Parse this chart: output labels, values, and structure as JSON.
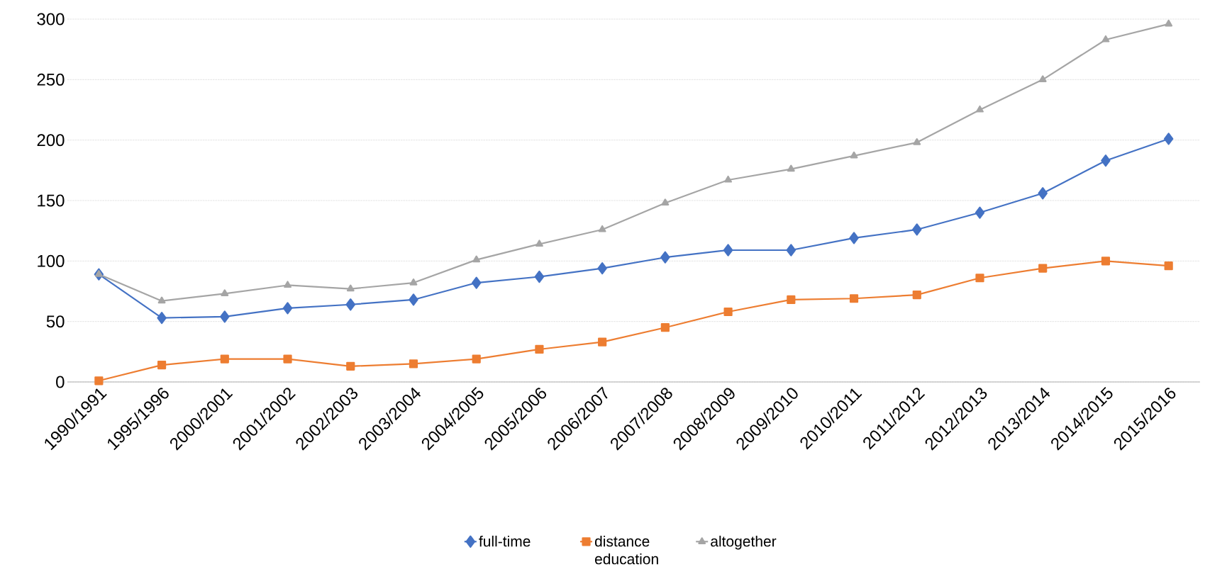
{
  "chart_data": {
    "type": "line",
    "categories": [
      "1990/1991",
      "1995/1996",
      "2000/2001",
      "2001/2002",
      "2002/2003",
      "2003/2004",
      "2004/2005",
      "2005/2006",
      "2006/2007",
      "2007/2008",
      "2008/2009",
      "2009/2010",
      "2010/2011",
      "2011/2012",
      "2012/2013",
      "2013/2014",
      "2014/2015",
      "2015/2016"
    ],
    "series": [
      {
        "name": "full-time",
        "color": "#4472c4",
        "marker": "diamond",
        "values": [
          89,
          53,
          54,
          61,
          64,
          68,
          82,
          87,
          94,
          103,
          109,
          109,
          119,
          126,
          140,
          156,
          183,
          201
        ]
      },
      {
        "name": "distance education",
        "color": "#ed7d31",
        "marker": "square",
        "values": [
          1,
          14,
          19,
          19,
          13,
          15,
          19,
          27,
          33,
          45,
          58,
          68,
          69,
          72,
          86,
          94,
          100,
          96
        ]
      },
      {
        "name": "altogether",
        "color": "#a5a5a5",
        "marker": "triangle",
        "values": [
          89,
          67,
          73,
          80,
          77,
          82,
          101,
          114,
          126,
          148,
          167,
          176,
          187,
          198,
          225,
          250,
          283,
          296
        ]
      }
    ],
    "ylim": [
      0,
      300
    ],
    "yticks": [
      0,
      50,
      100,
      150,
      200,
      250,
      300
    ],
    "grid": "y",
    "legend": "bottom",
    "line_style": "solid"
  }
}
